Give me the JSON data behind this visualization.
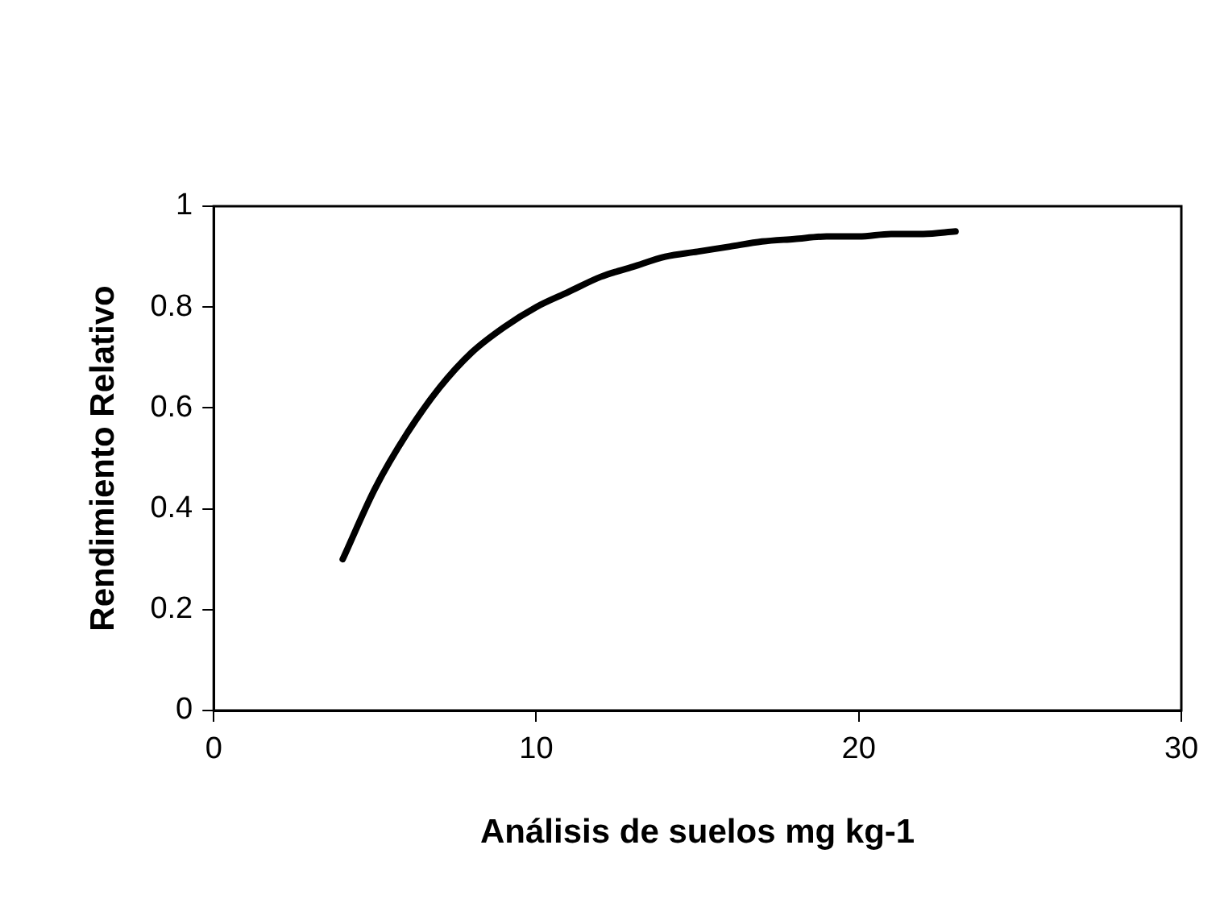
{
  "chart_data": {
    "type": "line",
    "xlabel": "Análisis de suelos mg kg-1",
    "ylabel": "Rendimiento Relativo",
    "x": [
      4,
      5,
      6,
      7,
      8,
      9,
      10,
      11,
      12,
      13,
      14,
      15,
      16,
      17,
      18,
      19,
      20,
      21,
      22,
      23
    ],
    "series": [
      {
        "color": "#000000",
        "values": [
          0.3,
          0.44,
          0.55,
          0.64,
          0.71,
          0.76,
          0.8,
          0.83,
          0.86,
          0.88,
          0.9,
          0.91,
          0.92,
          0.93,
          0.935,
          0.94,
          0.94,
          0.945,
          0.945,
          0.95
        ]
      }
    ],
    "xlim": [
      0,
      30
    ],
    "xticks": [
      0,
      10,
      20,
      30
    ],
    "ylim": [
      0,
      1
    ],
    "yticks": [
      0,
      0.2,
      0.4,
      0.6,
      0.8,
      1
    ],
    "grid": false,
    "legend": false,
    "marker": "none",
    "line_style": "solid"
  }
}
